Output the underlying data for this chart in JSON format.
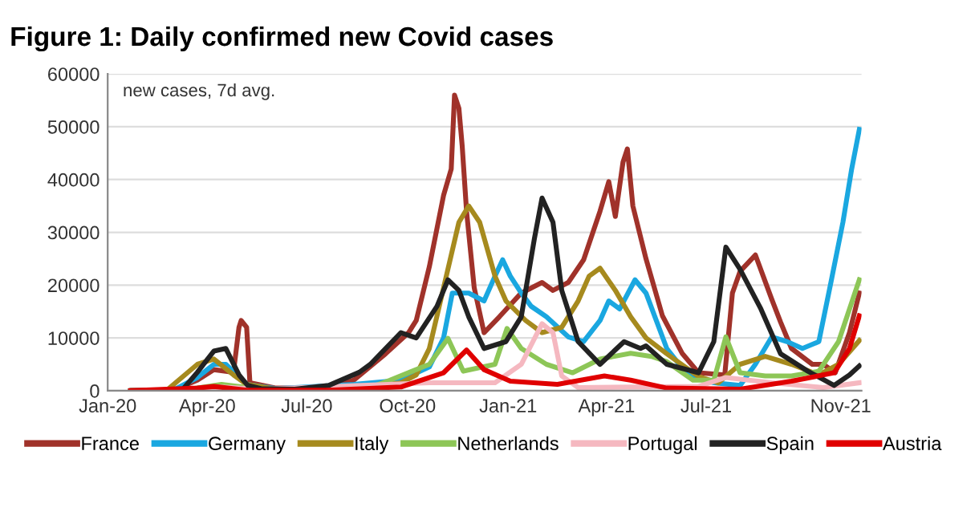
{
  "chart_data": {
    "type": "line",
    "title": "Figure 1: Daily confirmed new Covid cases",
    "annotations": [
      "new cases, 7d avg."
    ],
    "xlim": [
      "2020-01-01",
      "2021-11-20"
    ],
    "xticks": [
      {
        "value": "2020-01-01",
        "label": "Jan-20"
      },
      {
        "value": "2020-04-01",
        "label": "Apr-20"
      },
      {
        "value": "2020-07-01",
        "label": "Jul-20"
      },
      {
        "value": "2020-10-01",
        "label": "Oct-20"
      },
      {
        "value": "2021-01-01",
        "label": "Jan-21"
      },
      {
        "value": "2021-04-01",
        "label": "Apr-21"
      },
      {
        "value": "2021-07-01",
        "label": "Jul-21"
      },
      {
        "value": "2021-11-01",
        "label": "Nov-21"
      }
    ],
    "ylim": [
      0,
      60000
    ],
    "yticks": [
      0,
      10000,
      20000,
      30000,
      40000,
      50000,
      60000
    ],
    "grid": "y",
    "legend": "bottom",
    "series": [
      {
        "name": "France",
        "color": "#a0322a",
        "x": [
          "2020-01-22",
          "2020-03-01",
          "2020-03-23",
          "2020-04-07",
          "2020-04-25",
          "2020-04-30",
          "2020-05-02",
          "2020-05-07",
          "2020-05-10",
          "2020-06-03",
          "2020-07-21",
          "2020-08-13",
          "2020-09-11",
          "2020-10-02",
          "2020-10-09",
          "2020-10-21",
          "2020-11-03",
          "2020-11-10",
          "2020-11-13",
          "2020-11-17",
          "2020-11-20",
          "2020-11-24",
          "2020-12-01",
          "2020-12-10",
          "2020-12-24",
          "2021-01-13",
          "2021-02-01",
          "2021-02-11",
          "2021-02-25",
          "2021-03-11",
          "2021-03-26",
          "2021-04-03",
          "2021-04-09",
          "2021-04-16",
          "2021-04-20",
          "2021-04-25",
          "2021-05-07",
          "2021-05-22",
          "2021-06-09",
          "2021-06-24",
          "2021-07-18",
          "2021-07-25",
          "2021-08-01",
          "2021-08-15",
          "2021-08-30",
          "2021-09-07",
          "2021-09-17",
          "2021-10-06",
          "2021-10-16",
          "2021-10-27",
          "2021-11-09",
          "2021-11-18"
        ],
        "values": [
          0,
          100,
          2000,
          4000,
          3500,
          12000,
          13300,
          12000,
          1500,
          500,
          500,
          2000,
          7000,
          11000,
          13300,
          23500,
          37000,
          42000,
          56000,
          53500,
          46400,
          34000,
          19500,
          11000,
          14000,
          18500,
          20500,
          19000,
          20500,
          24800,
          34000,
          39600,
          33000,
          43300,
          45800,
          35000,
          25000,
          14200,
          7100,
          3400,
          3000,
          18500,
          22600,
          25700,
          17300,
          13000,
          8000,
          5000,
          5000,
          3400,
          11000,
          18500
        ]
      },
      {
        "name": "Germany",
        "color": "#1aa7e0",
        "x": [
          "2020-01-22",
          "2020-03-01",
          "2020-03-23",
          "2020-04-07",
          "2020-04-18",
          "2020-05-07",
          "2020-06-03",
          "2020-08-13",
          "2020-09-25",
          "2020-10-21",
          "2020-11-03",
          "2020-11-11",
          "2020-11-26",
          "2020-12-10",
          "2020-12-20",
          "2020-12-27",
          "2021-01-03",
          "2021-01-13",
          "2021-01-22",
          "2021-02-05",
          "2021-02-25",
          "2021-03-11",
          "2021-03-26",
          "2021-04-03",
          "2021-04-13",
          "2021-04-27",
          "2021-05-07",
          "2021-05-26",
          "2021-06-14",
          "2021-07-08",
          "2021-08-01",
          "2021-08-15",
          "2021-08-30",
          "2021-09-13",
          "2021-09-27",
          "2021-10-12",
          "2021-10-23",
          "2021-11-03",
          "2021-11-11",
          "2021-11-18"
        ],
        "values": [
          0,
          100,
          2500,
          5000,
          5000,
          1200,
          400,
          1200,
          2000,
          4500,
          10000,
          18500,
          18500,
          17000,
          21700,
          24800,
          21700,
          18500,
          16000,
          14000,
          10200,
          9300,
          13300,
          17000,
          15500,
          21000,
          18500,
          8000,
          3000,
          1500,
          1000,
          5000,
          10200,
          9300,
          8000,
          9300,
          20500,
          31900,
          42000,
          49500
        ]
      },
      {
        "name": "Italy",
        "color": "#a68a1e",
        "x": [
          "2020-01-22",
          "2020-02-24",
          "2020-03-23",
          "2020-04-07",
          "2020-04-25",
          "2020-05-07",
          "2020-06-03",
          "2020-08-13",
          "2020-09-25",
          "2020-10-09",
          "2020-10-21",
          "2020-11-03",
          "2020-11-17",
          "2020-11-26",
          "2020-12-06",
          "2020-12-20",
          "2020-12-30",
          "2021-01-17",
          "2021-02-01",
          "2021-02-19",
          "2021-03-06",
          "2021-03-16",
          "2021-03-26",
          "2021-04-09",
          "2021-04-23",
          "2021-05-07",
          "2021-05-26",
          "2021-06-24",
          "2021-07-12",
          "2021-08-01",
          "2021-08-24",
          "2021-09-17",
          "2021-10-12",
          "2021-10-30",
          "2021-11-18"
        ],
        "values": [
          0,
          100,
          5000,
          6000,
          3000,
          1200,
          300,
          400,
          1500,
          3000,
          8000,
          19500,
          31900,
          35000,
          31900,
          21700,
          17000,
          13300,
          11000,
          12000,
          17000,
          21700,
          23200,
          19000,
          14000,
          10000,
          7000,
          2700,
          1500,
          5000,
          6500,
          5000,
          3000,
          5000,
          9500
        ]
      },
      {
        "name": "Netherlands",
        "color": "#8dc657",
        "x": [
          "2020-01-22",
          "2020-03-09",
          "2020-04-14",
          "2020-05-20",
          "2020-07-21",
          "2020-08-28",
          "2020-09-15",
          "2020-10-21",
          "2020-11-07",
          "2020-11-21",
          "2020-12-20",
          "2020-12-31",
          "2021-01-13",
          "2021-02-05",
          "2021-03-01",
          "2021-03-26",
          "2021-04-23",
          "2021-05-12",
          "2021-05-26",
          "2021-06-19",
          "2021-07-08",
          "2021-07-19",
          "2021-08-01",
          "2021-08-24",
          "2021-09-17",
          "2021-10-12",
          "2021-10-30",
          "2021-11-18"
        ],
        "values": [
          0,
          100,
          1200,
          300,
          300,
          600,
          2000,
          5000,
          9900,
          3700,
          5000,
          11800,
          8000,
          5000,
          3400,
          6000,
          7100,
          6500,
          5500,
          2000,
          2000,
          10200,
          3400,
          2800,
          2800,
          3700,
          9300,
          21000
        ]
      },
      {
        "name": "Portugal",
        "color": "#f5b8c0",
        "x": [
          "2020-01-22",
          "2020-03-23",
          "2020-04-14",
          "2020-05-20",
          "2020-10-21",
          "2020-12-20",
          "2021-01-13",
          "2021-02-01",
          "2021-02-11",
          "2021-02-19",
          "2021-03-06",
          "2021-06-24",
          "2021-07-19",
          "2021-08-30",
          "2021-10-16",
          "2021-11-18"
        ],
        "values": [
          0,
          300,
          700,
          300,
          1500,
          1500,
          5000,
          12700,
          11000,
          2800,
          600,
          800,
          2500,
          1500,
          600,
          1500
        ]
      },
      {
        "name": "Spain",
        "color": "#222222",
        "x": [
          "2020-01-22",
          "2020-03-09",
          "2020-03-23",
          "2020-04-07",
          "2020-04-18",
          "2020-04-30",
          "2020-05-08",
          "2020-05-20",
          "2020-06-20",
          "2020-07-21",
          "2020-08-18",
          "2020-08-28",
          "2020-09-25",
          "2020-10-09",
          "2020-10-28",
          "2020-11-07",
          "2020-11-17",
          "2020-11-26",
          "2020-12-10",
          "2020-12-30",
          "2021-01-13",
          "2021-01-25",
          "2021-02-01",
          "2021-02-11",
          "2021-02-19",
          "2021-03-06",
          "2021-03-26",
          "2021-04-17",
          "2021-05-02",
          "2021-05-07",
          "2021-05-26",
          "2021-06-24",
          "2021-07-08",
          "2021-07-19",
          "2021-08-01",
          "2021-08-20",
          "2021-09-07",
          "2021-10-02",
          "2021-10-26",
          "2021-11-09",
          "2021-11-18"
        ],
        "values": [
          0,
          100,
          3500,
          7500,
          8000,
          3000,
          1000,
          400,
          300,
          1000,
          3500,
          5000,
          11000,
          10000,
          16000,
          21000,
          19000,
          14000,
          8000,
          9300,
          14000,
          28800,
          36500,
          31900,
          19000,
          9300,
          5000,
          9300,
          8000,
          8500,
          5000,
          3400,
          9300,
          27200,
          23000,
          15500,
          7000,
          3700,
          1000,
          3000,
          4700
        ]
      },
      {
        "name": "Austria",
        "color": "#e00000",
        "x": [
          "2020-01-22",
          "2020-03-23",
          "2020-04-07",
          "2020-05-07",
          "2020-07-21",
          "2020-09-25",
          "2020-11-03",
          "2020-11-24",
          "2020-12-10",
          "2021-01-03",
          "2021-02-15",
          "2021-03-30",
          "2021-04-23",
          "2021-05-26",
          "2021-08-01",
          "2021-09-17",
          "2021-10-26",
          "2021-11-09",
          "2021-11-18"
        ],
        "values": [
          0,
          500,
          800,
          100,
          100,
          700,
          3400,
          7700,
          4000,
          1800,
          1200,
          2800,
          2000,
          500,
          300,
          1800,
          3400,
          8000,
          14200
        ]
      }
    ]
  }
}
